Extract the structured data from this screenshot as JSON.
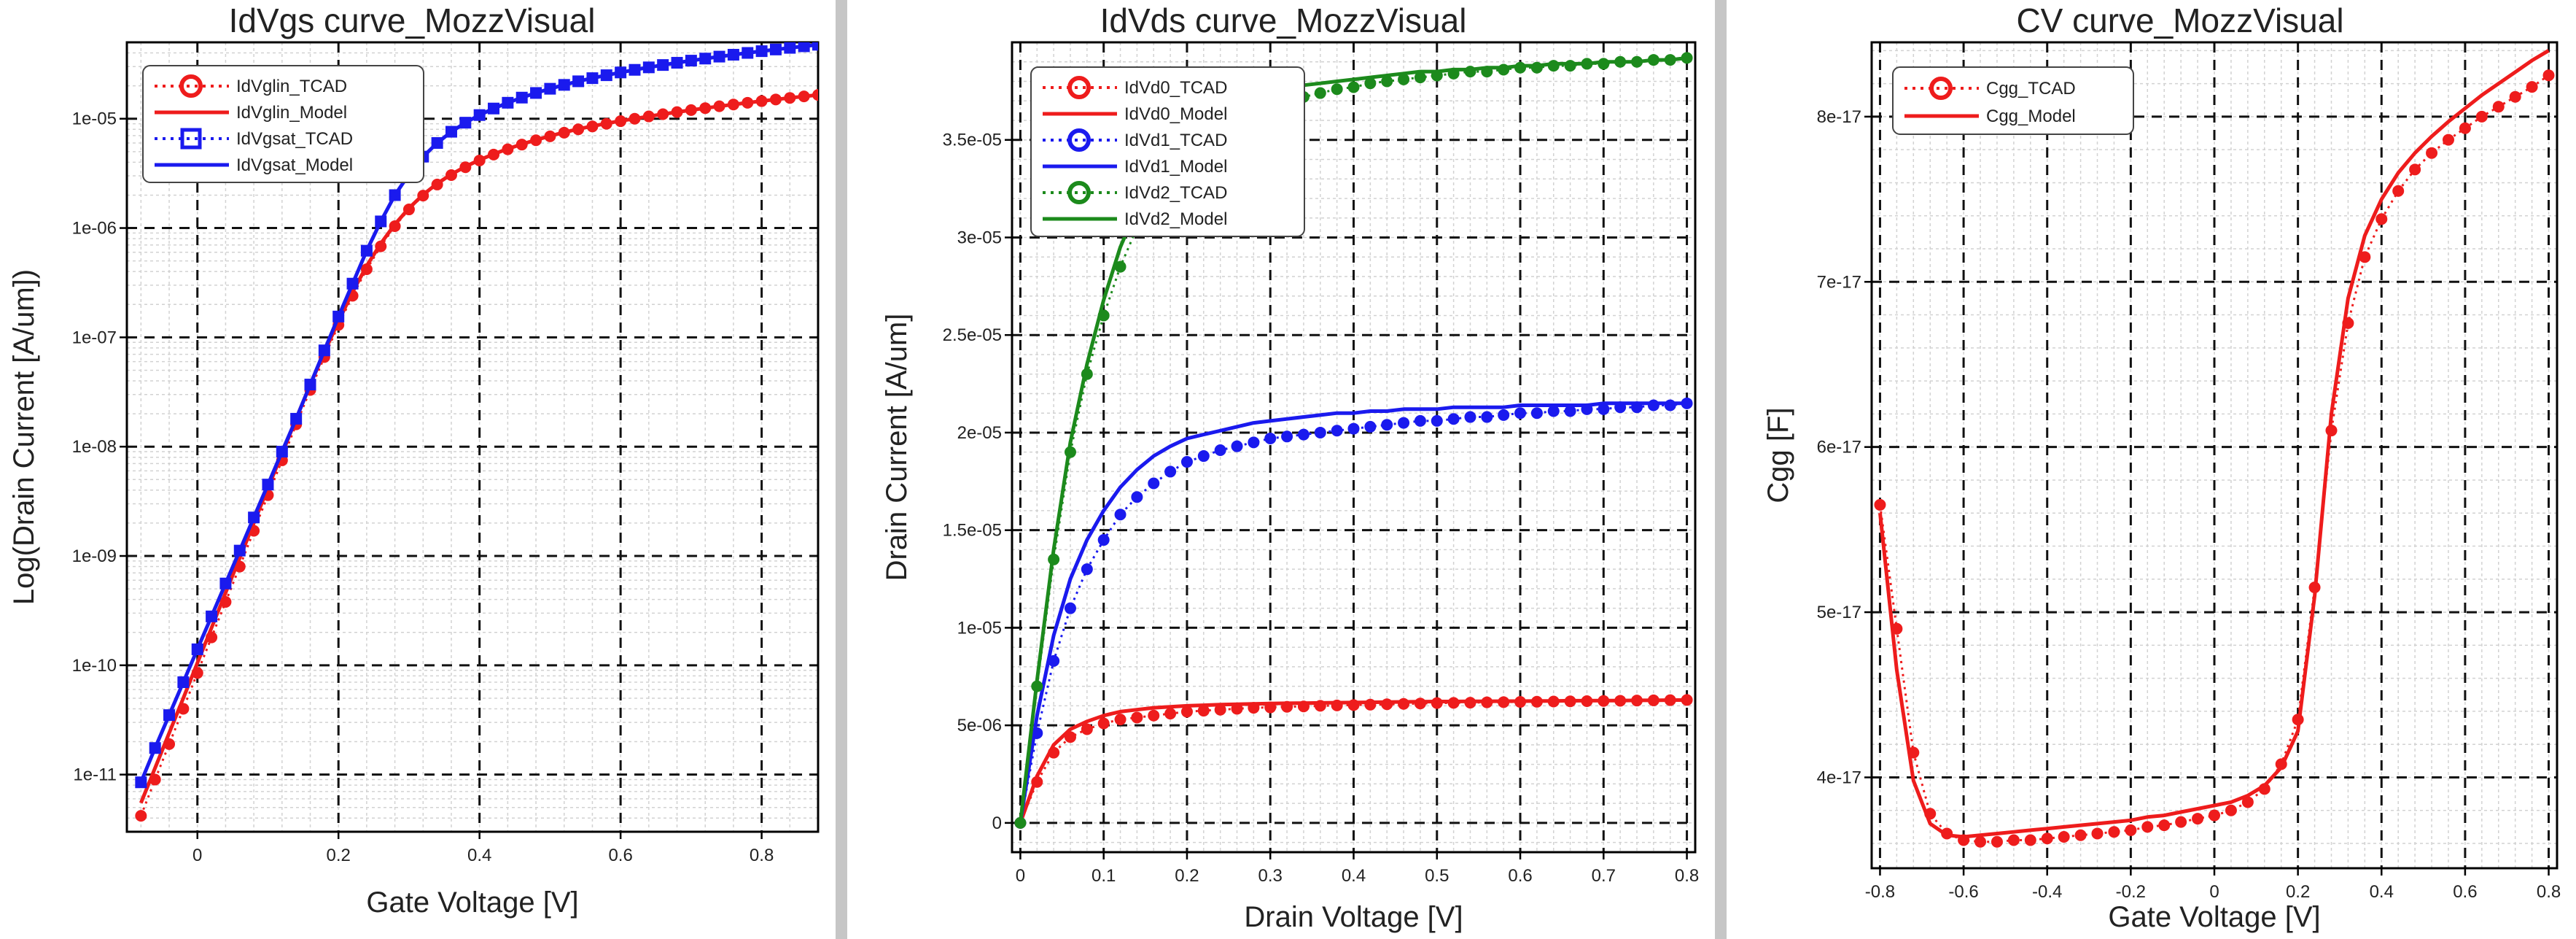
{
  "colors": {
    "red": "#ee1c1c",
    "blue": "#1a1aee",
    "green": "#1c8a1c",
    "frame": "#000000",
    "separator": "#c6c6c6"
  },
  "chart_data": [
    {
      "type": "line",
      "title": "IdVgs curve_MozzVisual",
      "xlabel": "Gate Voltage [V]",
      "ylabel": "Log(Drain Current [A/um])",
      "yscale": "log",
      "xlim": [
        -0.1,
        0.88
      ],
      "ylim": [
        3e-12,
        5e-05
      ],
      "xticks": [
        0,
        0.2,
        0.4,
        0.6,
        0.8
      ],
      "xtick_labels": [
        "0",
        "0.2",
        "0.4",
        "0.6",
        "0.8"
      ],
      "yticks": [
        1e-11,
        1e-10,
        1e-09,
        1e-08,
        1e-07,
        1e-06,
        1e-05
      ],
      "ytick_labels": [
        "1e-11",
        "1e-10",
        "1e-09",
        "1e-08",
        "1e-07",
        "1e-06",
        "1e-05"
      ],
      "grid": true,
      "legend_position": "top-left",
      "legend": [
        {
          "label": "IdVglin_TCAD",
          "color": "#ee1c1c",
          "style": "dotted-marker",
          "marker": "circle"
        },
        {
          "label": "IdVglin_Model",
          "color": "#ee1c1c",
          "style": "solid"
        },
        {
          "label": "IdVgsat_TCAD",
          "color": "#1a1aee",
          "style": "dotted-marker",
          "marker": "square"
        },
        {
          "label": "IdVgsat_Model",
          "color": "#1a1aee",
          "style": "solid"
        }
      ],
      "x": [
        -0.08,
        -0.06,
        -0.04,
        -0.02,
        0.0,
        0.02,
        0.04,
        0.06,
        0.08,
        0.1,
        0.12,
        0.14,
        0.16,
        0.18,
        0.2,
        0.22,
        0.24,
        0.26,
        0.28,
        0.3,
        0.32,
        0.34,
        0.36,
        0.38,
        0.4,
        0.42,
        0.44,
        0.46,
        0.48,
        0.5,
        0.52,
        0.54,
        0.56,
        0.58,
        0.6,
        0.62,
        0.64,
        0.66,
        0.68,
        0.7,
        0.72,
        0.74,
        0.76,
        0.78,
        0.8,
        0.82,
        0.84,
        0.86,
        0.88
      ],
      "series": [
        {
          "name": "IdVglin_TCAD",
          "color": "#ee1c1c",
          "kind": "markers",
          "marker": "circle",
          "values": [
            4.2e-12,
            9e-12,
            1.9e-11,
            4e-11,
            8.5e-11,
            1.8e-10,
            3.8e-10,
            8e-10,
            1.7e-09,
            3.6e-09,
            7.5e-09,
            1.6e-08,
            3.3e-08,
            6.6e-08,
            1.3e-07,
            2.4e-07,
            4.2e-07,
            6.8e-07,
            1.04e-06,
            1.48e-06,
            1.98e-06,
            2.5e-06,
            3.05e-06,
            3.6e-06,
            4.15e-06,
            4.7e-06,
            5.25e-06,
            5.8e-06,
            6.35e-06,
            6.9e-06,
            7.45e-06,
            8e-06,
            8.5e-06,
            9e-06,
            9.5e-06,
            1e-05,
            1.05e-05,
            1.1e-05,
            1.15e-05,
            1.2e-05,
            1.25e-05,
            1.3e-05,
            1.35e-05,
            1.4e-05,
            1.45e-05,
            1.5e-05,
            1.55e-05,
            1.6e-05,
            1.65e-05
          ]
        },
        {
          "name": "IdVglin_Model",
          "color": "#ee1c1c",
          "kind": "line",
          "values": [
            5.5e-12,
            1.15e-11,
            2.4e-11,
            5e-11,
            1.05e-10,
            2.2e-10,
            4.6e-10,
            9.6e-10,
            2e-09,
            4.2e-09,
            8.6e-09,
            1.8e-08,
            3.7e-08,
            7.3e-08,
            1.4e-07,
            2.6e-07,
            4.5e-07,
            7.2e-07,
            1.08e-06,
            1.52e-06,
            2.02e-06,
            2.55e-06,
            3.1e-06,
            3.65e-06,
            4.2e-06,
            4.75e-06,
            5.3e-06,
            5.85e-06,
            6.4e-06,
            6.95e-06,
            7.5e-06,
            8.05e-06,
            8.55e-06,
            9.05e-06,
            9.55e-06,
            1e-05,
            1.05e-05,
            1.1e-05,
            1.15e-05,
            1.2e-05,
            1.25e-05,
            1.3e-05,
            1.35e-05,
            1.4e-05,
            1.45e-05,
            1.5e-05,
            1.55e-05,
            1.6e-05,
            1.65e-05
          ]
        },
        {
          "name": "IdVgsat_TCAD",
          "color": "#1a1aee",
          "kind": "markers",
          "marker": "square",
          "values": [
            8.5e-12,
            1.75e-11,
            3.5e-11,
            7e-11,
            1.4e-10,
            2.8e-10,
            5.6e-10,
            1.12e-09,
            2.25e-09,
            4.5e-09,
            9e-09,
            1.8e-08,
            3.7e-08,
            7.6e-08,
            1.55e-07,
            3.1e-07,
            6.2e-07,
            1.15e-06,
            2e-06,
            3.1e-06,
            4.5e-06,
            6e-06,
            7.6e-06,
            9.2e-06,
            1.08e-05,
            1.24e-05,
            1.4e-05,
            1.56e-05,
            1.72e-05,
            1.88e-05,
            2.04e-05,
            2.2e-05,
            2.35e-05,
            2.5e-05,
            2.65e-05,
            2.8e-05,
            2.95e-05,
            3.1e-05,
            3.25e-05,
            3.4e-05,
            3.55e-05,
            3.7e-05,
            3.85e-05,
            4e-05,
            4.15e-05,
            4.3e-05,
            4.45e-05,
            4.6e-05,
            4.75e-05
          ]
        },
        {
          "name": "IdVgsat_Model",
          "color": "#1a1aee",
          "kind": "line",
          "values": [
            8.5e-12,
            1.75e-11,
            3.5e-11,
            7e-11,
            1.4e-10,
            2.8e-10,
            5.6e-10,
            1.12e-09,
            2.25e-09,
            4.5e-09,
            9e-09,
            1.8e-08,
            3.7e-08,
            7.6e-08,
            1.55e-07,
            3.1e-07,
            6.2e-07,
            1.15e-06,
            2e-06,
            3.1e-06,
            4.5e-06,
            6e-06,
            7.6e-06,
            9.2e-06,
            1.08e-05,
            1.24e-05,
            1.4e-05,
            1.56e-05,
            1.72e-05,
            1.88e-05,
            2.04e-05,
            2.2e-05,
            2.35e-05,
            2.5e-05,
            2.65e-05,
            2.8e-05,
            2.95e-05,
            3.1e-05,
            3.25e-05,
            3.4e-05,
            3.55e-05,
            3.7e-05,
            3.85e-05,
            4e-05,
            4.15e-05,
            4.3e-05,
            4.45e-05,
            4.6e-05,
            4.75e-05
          ]
        }
      ]
    },
    {
      "type": "line",
      "title": "IdVds curve_MozzVisual",
      "xlabel": "Drain Voltage [V]",
      "ylabel": "Drain Current [A/um]",
      "yscale": "linear",
      "xlim": [
        -0.01,
        0.81
      ],
      "ylim": [
        -1.5e-06,
        4e-05
      ],
      "xticks": [
        0,
        0.1,
        0.2,
        0.3,
        0.4,
        0.5,
        0.6,
        0.7,
        0.8
      ],
      "xtick_labels": [
        "0",
        "0.1",
        "0.2",
        "0.3",
        "0.4",
        "0.5",
        "0.6",
        "0.7",
        "0.8"
      ],
      "yticks": [
        0,
        5e-06,
        1e-05,
        1.5e-05,
        2e-05,
        2.5e-05,
        3e-05,
        3.5e-05
      ],
      "ytick_labels": [
        "0",
        "5e-06",
        "1e-05",
        "1.5e-05",
        "2e-05",
        "2.5e-05",
        "3e-05",
        "3.5e-05"
      ],
      "grid": true,
      "legend_position": "top-left",
      "legend": [
        {
          "label": "IdVd0_TCAD",
          "color": "#ee1c1c",
          "style": "dotted-marker",
          "marker": "circle"
        },
        {
          "label": "IdVd0_Model",
          "color": "#ee1c1c",
          "style": "solid"
        },
        {
          "label": "IdVd1_TCAD",
          "color": "#1a1aee",
          "style": "dotted-marker",
          "marker": "circle"
        },
        {
          "label": "IdVd1_Model",
          "color": "#1a1aee",
          "style": "solid"
        },
        {
          "label": "IdVd2_TCAD",
          "color": "#1c8a1c",
          "style": "dotted-marker",
          "marker": "circle"
        },
        {
          "label": "IdVd2_Model",
          "color": "#1c8a1c",
          "style": "solid"
        }
      ],
      "x": [
        0.0,
        0.02,
        0.04,
        0.06,
        0.08,
        0.1,
        0.12,
        0.14,
        0.16,
        0.18,
        0.2,
        0.22,
        0.24,
        0.26,
        0.28,
        0.3,
        0.32,
        0.34,
        0.36,
        0.38,
        0.4,
        0.42,
        0.44,
        0.46,
        0.48,
        0.5,
        0.52,
        0.54,
        0.56,
        0.58,
        0.6,
        0.62,
        0.64,
        0.66,
        0.68,
        0.7,
        0.72,
        0.74,
        0.76,
        0.78,
        0.8
      ],
      "series": [
        {
          "name": "IdVd0_TCAD",
          "color": "#ee1c1c",
          "kind": "markers",
          "marker": "circle",
          "values": [
            0.0,
            2.1e-06,
            3.6e-06,
            4.4e-06,
            4.8e-06,
            5.1e-06,
            5.3e-06,
            5.4e-06,
            5.5e-06,
            5.6e-06,
            5.7e-06,
            5.75e-06,
            5.8e-06,
            5.85e-06,
            5.9e-06,
            5.92e-06,
            5.95e-06,
            5.97e-06,
            6e-06,
            6.02e-06,
            6.04e-06,
            6.06e-06,
            6.08e-06,
            6.1e-06,
            6.12e-06,
            6.14e-06,
            6.15e-06,
            6.16e-06,
            6.18e-06,
            6.19e-06,
            6.2e-06,
            6.21e-06,
            6.22e-06,
            6.23e-06,
            6.24e-06,
            6.25e-06,
            6.26e-06,
            6.27e-06,
            6.28e-06,
            6.29e-06,
            6.3e-06
          ]
        },
        {
          "name": "IdVd0_Model",
          "color": "#ee1c1c",
          "kind": "line",
          "values": [
            0.0,
            2.4e-06,
            4e-06,
            4.8e-06,
            5.2e-06,
            5.5e-06,
            5.7e-06,
            5.8e-06,
            5.9e-06,
            5.95e-06,
            6e-06,
            6.03e-06,
            6.06e-06,
            6.08e-06,
            6.1e-06,
            6.12e-06,
            6.13e-06,
            6.14e-06,
            6.15e-06,
            6.16e-06,
            6.17e-06,
            6.18e-06,
            6.19e-06,
            6.2e-06,
            6.21e-06,
            6.22e-06,
            6.22e-06,
            6.23e-06,
            6.23e-06,
            6.24e-06,
            6.24e-06,
            6.25e-06,
            6.25e-06,
            6.26e-06,
            6.26e-06,
            6.27e-06,
            6.27e-06,
            6.28e-06,
            6.28e-06,
            6.29e-06,
            6.3e-06
          ]
        },
        {
          "name": "IdVd1_TCAD",
          "color": "#1a1aee",
          "kind": "markers",
          "marker": "circle",
          "values": [
            0.0,
            4.6e-06,
            8.3e-06,
            1.1e-05,
            1.3e-05,
            1.45e-05,
            1.58e-05,
            1.67e-05,
            1.74e-05,
            1.8e-05,
            1.85e-05,
            1.88e-05,
            1.91e-05,
            1.93e-05,
            1.95e-05,
            1.97e-05,
            1.98e-05,
            1.99e-05,
            2e-05,
            2.01e-05,
            2.02e-05,
            2.03e-05,
            2.04e-05,
            2.05e-05,
            2.06e-05,
            2.06e-05,
            2.07e-05,
            2.08e-05,
            2.08e-05,
            2.09e-05,
            2.1e-05,
            2.1e-05,
            2.11e-05,
            2.11e-05,
            2.12e-05,
            2.12e-05,
            2.13e-05,
            2.13e-05,
            2.14e-05,
            2.14e-05,
            2.15e-05
          ]
        },
        {
          "name": "IdVd1_Model",
          "color": "#1a1aee",
          "kind": "line",
          "values": [
            0.0,
            5.5e-06,
            9.6e-06,
            1.25e-05,
            1.45e-05,
            1.6e-05,
            1.72e-05,
            1.81e-05,
            1.88e-05,
            1.93e-05,
            1.97e-05,
            1.99e-05,
            2.01e-05,
            2.03e-05,
            2.05e-05,
            2.06e-05,
            2.07e-05,
            2.08e-05,
            2.09e-05,
            2.1e-05,
            2.1e-05,
            2.11e-05,
            2.11e-05,
            2.12e-05,
            2.12e-05,
            2.12e-05,
            2.13e-05,
            2.13e-05,
            2.13e-05,
            2.13e-05,
            2.14e-05,
            2.14e-05,
            2.14e-05,
            2.14e-05,
            2.14e-05,
            2.15e-05,
            2.15e-05,
            2.15e-05,
            2.15e-05,
            2.15e-05,
            2.15e-05
          ]
        },
        {
          "name": "IdVd2_TCAD",
          "color": "#1c8a1c",
          "kind": "markers",
          "marker": "circle",
          "values": [
            0.0,
            7e-06,
            1.35e-05,
            1.9e-05,
            2.3e-05,
            2.6e-05,
            2.85e-05,
            3.05e-05,
            3.2e-05,
            3.32e-05,
            3.42e-05,
            3.5e-05,
            3.55e-05,
            3.6e-05,
            3.64e-05,
            3.67e-05,
            3.7e-05,
            3.72e-05,
            3.74e-05,
            3.76e-05,
            3.77e-05,
            3.79e-05,
            3.8e-05,
            3.81e-05,
            3.82e-05,
            3.83e-05,
            3.84e-05,
            3.85e-05,
            3.85e-05,
            3.86e-05,
            3.87e-05,
            3.87e-05,
            3.88e-05,
            3.88e-05,
            3.89e-05,
            3.89e-05,
            3.9e-05,
            3.9e-05,
            3.91e-05,
            3.91e-05,
            3.92e-05
          ]
        },
        {
          "name": "IdVd2_Model",
          "color": "#1c8a1c",
          "kind": "line",
          "values": [
            0.0,
            7.3e-06,
            1.4e-05,
            1.95e-05,
            2.35e-05,
            2.68e-05,
            2.95e-05,
            3.15e-05,
            3.3e-05,
            3.42e-05,
            3.52e-05,
            3.59e-05,
            3.64e-05,
            3.68e-05,
            3.71e-05,
            3.74e-05,
            3.76e-05,
            3.78e-05,
            3.79e-05,
            3.8e-05,
            3.81e-05,
            3.82e-05,
            3.83e-05,
            3.84e-05,
            3.85e-05,
            3.85e-05,
            3.86e-05,
            3.86e-05,
            3.87e-05,
            3.87e-05,
            3.88e-05,
            3.88e-05,
            3.89e-05,
            3.89e-05,
            3.89e-05,
            3.9e-05,
            3.9e-05,
            3.9e-05,
            3.91e-05,
            3.91e-05,
            3.92e-05
          ]
        }
      ]
    },
    {
      "type": "line",
      "title": "CV curve_MozzVisual",
      "xlabel": "Gate Voltage [V]",
      "ylabel": "Cgg [F]",
      "yscale": "linear",
      "xlim": [
        -0.82,
        0.82
      ],
      "ylim": [
        3.45e-17,
        8.45e-17
      ],
      "xticks": [
        -0.8,
        -0.6,
        -0.4,
        -0.2,
        0,
        0.2,
        0.4,
        0.6,
        0.8
      ],
      "xtick_labels": [
        "-0.8",
        "-0.6",
        "-0.4",
        "-0.2",
        "0",
        "0.2",
        "0.4",
        "0.6",
        "0.8"
      ],
      "yticks": [
        4e-17,
        5e-17,
        6e-17,
        7e-17,
        8e-17
      ],
      "ytick_labels": [
        "4e-17",
        "5e-17",
        "6e-17",
        "7e-17",
        "8e-17"
      ],
      "grid": true,
      "legend_position": "top-left",
      "legend": [
        {
          "label": "Cgg_TCAD",
          "color": "#ee1c1c",
          "style": "dotted-marker",
          "marker": "circle"
        },
        {
          "label": "Cgg_Model",
          "color": "#ee1c1c",
          "style": "solid"
        }
      ],
      "x": [
        -0.8,
        -0.76,
        -0.72,
        -0.68,
        -0.64,
        -0.6,
        -0.56,
        -0.52,
        -0.48,
        -0.44,
        -0.4,
        -0.36,
        -0.32,
        -0.28,
        -0.24,
        -0.2,
        -0.16,
        -0.12,
        -0.08,
        -0.04,
        0.0,
        0.04,
        0.08,
        0.12,
        0.16,
        0.2,
        0.24,
        0.28,
        0.32,
        0.36,
        0.4,
        0.44,
        0.48,
        0.52,
        0.56,
        0.6,
        0.64,
        0.68,
        0.72,
        0.76,
        0.8
      ],
      "series": [
        {
          "name": "Cgg_TCAD",
          "color": "#ee1c1c",
          "kind": "markers",
          "marker": "circle",
          "values": [
            5.65e-17,
            4.9e-17,
            4.15e-17,
            3.78e-17,
            3.66e-17,
            3.62e-17,
            3.61e-17,
            3.61e-17,
            3.62e-17,
            3.62e-17,
            3.63e-17,
            3.64e-17,
            3.65e-17,
            3.66e-17,
            3.67e-17,
            3.68e-17,
            3.7e-17,
            3.71e-17,
            3.73e-17,
            3.75e-17,
            3.77e-17,
            3.8e-17,
            3.85e-17,
            3.93e-17,
            4.08e-17,
            4.35e-17,
            5.15e-17,
            6.1e-17,
            6.75e-17,
            7.15e-17,
            7.38e-17,
            7.55e-17,
            7.68e-17,
            7.78e-17,
            7.86e-17,
            7.93e-17,
            8e-17,
            8.06e-17,
            8.12e-17,
            8.18e-17,
            8.25e-17
          ]
        },
        {
          "name": "Cgg_Model",
          "color": "#ee1c1c",
          "kind": "line",
          "values": [
            5.6e-17,
            4.65e-17,
            3.98e-17,
            3.72e-17,
            3.65e-17,
            3.64e-17,
            3.65e-17,
            3.66e-17,
            3.67e-17,
            3.68e-17,
            3.69e-17,
            3.7e-17,
            3.71e-17,
            3.72e-17,
            3.73e-17,
            3.74e-17,
            3.76e-17,
            3.77e-17,
            3.79e-17,
            3.81e-17,
            3.83e-17,
            3.85e-17,
            3.89e-17,
            3.95e-17,
            4.06e-17,
            4.28e-17,
            5.1e-17,
            6.2e-17,
            6.9e-17,
            7.28e-17,
            7.5e-17,
            7.66e-17,
            7.78e-17,
            7.88e-17,
            7.97e-17,
            8.05e-17,
            8.13e-17,
            8.2e-17,
            8.27e-17,
            8.34e-17,
            8.4e-17
          ]
        }
      ]
    }
  ]
}
